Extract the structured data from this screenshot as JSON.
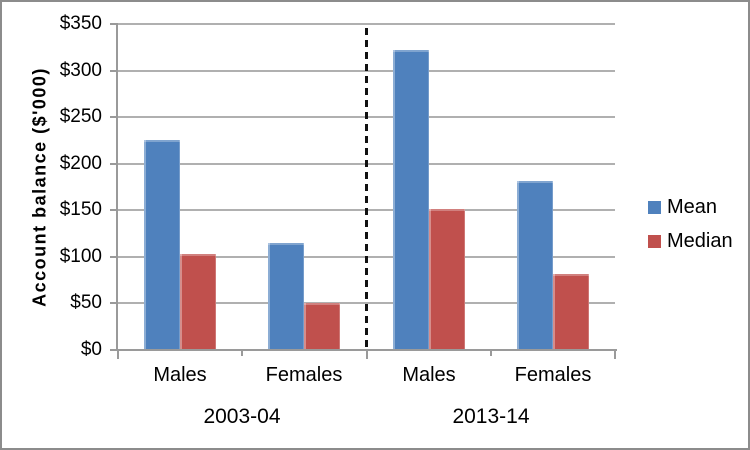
{
  "window": {
    "background": "#ffffff",
    "border_color": "#8c8c8c"
  },
  "chart_data": {
    "type": "bar",
    "title": "",
    "xlabel": "",
    "ylabel": "Account balance ($'000)",
    "ylim": [
      0,
      350
    ],
    "ytick_step": 50,
    "yticks": [
      {
        "value": 0,
        "label": "$0"
      },
      {
        "value": 50,
        "label": "$50"
      },
      {
        "value": 100,
        "label": "$100"
      },
      {
        "value": 150,
        "label": "$150"
      },
      {
        "value": 200,
        "label": "$200"
      },
      {
        "value": 250,
        "label": "$250"
      },
      {
        "value": 300,
        "label": "$300"
      },
      {
        "value": 350,
        "label": "$350"
      }
    ],
    "categories": [
      "Males",
      "Females",
      "Males",
      "Females"
    ],
    "groups": [
      {
        "label": "2003-04",
        "categories": [
          "Males",
          "Females"
        ]
      },
      {
        "label": "2013-14",
        "categories": [
          "Males",
          "Females"
        ]
      }
    ],
    "series": [
      {
        "name": "Mean",
        "color": "#4f81bd",
        "values": [
          224,
          114,
          321,
          180
        ]
      },
      {
        "name": "Median",
        "color": "#c0504d",
        "values": [
          102,
          49,
          150,
          80
        ]
      }
    ],
    "legend_position": "right",
    "grid": true,
    "gridline_color": "#b0b0b0",
    "axis_color": "#9a9a9a",
    "group_divider": {
      "style": "dashed",
      "color": "#111111",
      "between": [
        "2003-04",
        "2013-14"
      ]
    }
  }
}
